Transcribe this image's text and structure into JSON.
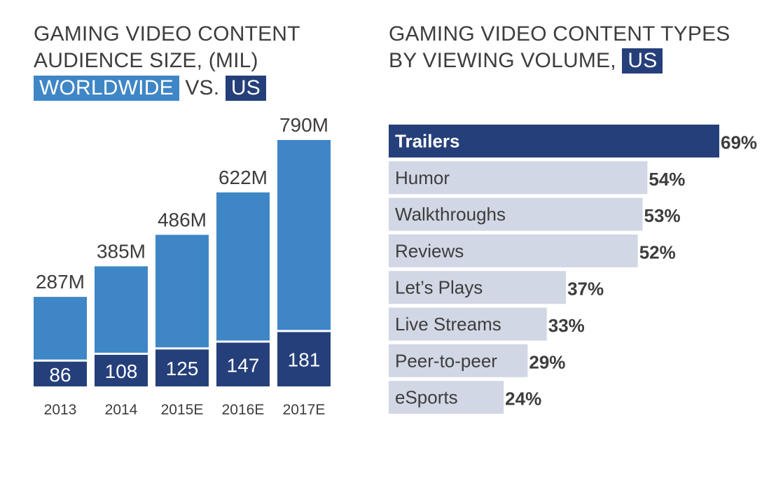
{
  "left_title": {
    "line1": "GAMING VIDEO CONTENT",
    "line2": "AUDIENCE SIZE, (MIL)",
    "worldwide_tag": "WORLDWIDE",
    "vs_text": "VS.",
    "us_tag": "US"
  },
  "right_title": {
    "line1": "GAMING VIDEO CONTENT TYPES",
    "line2": "BY VIEWING VOLUME,",
    "us_tag": "US"
  },
  "colors": {
    "worldwide": "#3f86c6",
    "us": "#253f7a",
    "bar_light": "#d2d7e5",
    "bar_highlight": "#253f7a",
    "text_dark": "#3d3d3d"
  },
  "chart_data": [
    {
      "type": "bar",
      "categories": [
        "2013",
        "2014",
        "2015E",
        "2016E",
        "2017E"
      ],
      "series": [
        {
          "name": "WORLDWIDE",
          "values": [
            287,
            385,
            486,
            622,
            790
          ],
          "labels": [
            "287M",
            "385M",
            "486M",
            "622M",
            "790M"
          ]
        },
        {
          "name": "US",
          "values": [
            86,
            108,
            125,
            147,
            181
          ],
          "labels": [
            "86",
            "108",
            "125",
            "147",
            "181"
          ]
        }
      ],
      "ylim": [
        0,
        790
      ],
      "grid": false
    },
    {
      "type": "bar",
      "orientation": "horizontal",
      "categories": [
        "Trailers",
        "Humor",
        "Walkthroughs",
        "Reviews",
        "Let’s Plays",
        "Live Streams",
        "Peer-to-peer",
        "eSports"
      ],
      "values": [
        69,
        54,
        53,
        52,
        37,
        33,
        29,
        24
      ],
      "value_labels": [
        "69%",
        "54%",
        "53%",
        "52%",
        "37%",
        "33%",
        "29%",
        "24%"
      ],
      "highlight": "Trailers",
      "grid": false
    }
  ]
}
